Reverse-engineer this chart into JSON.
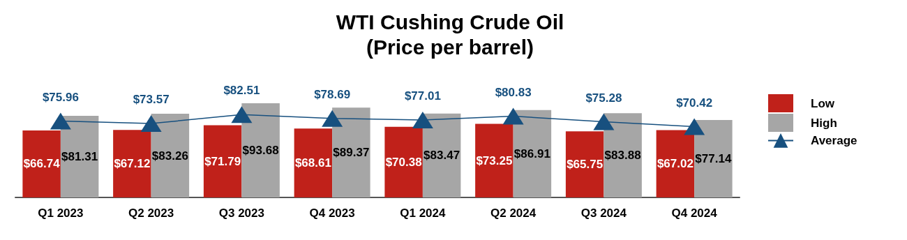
{
  "chart_data": {
    "type": "bar",
    "title": "WTI Cushing Crude Oil\n(Price per barrel)",
    "categories": [
      "Q1 2023",
      "Q2 2023",
      "Q3 2023",
      "Q4 2023",
      "Q1 2024",
      "Q2 2024",
      "Q3 2024",
      "Q4 2024"
    ],
    "series": [
      {
        "name": "Low",
        "color": "#c0211a",
        "values": [
          66.74,
          67.12,
          71.79,
          68.61,
          70.38,
          73.25,
          65.75,
          67.02
        ],
        "value_labels": [
          "$66.74",
          "$67.12",
          "$71.79",
          "$68.61",
          "$70.38",
          "$73.25",
          "$65.75",
          "$67.02"
        ]
      },
      {
        "name": "High",
        "color": "#a6a6a6",
        "values": [
          81.31,
          83.26,
          93.68,
          89.37,
          83.47,
          86.91,
          83.88,
          77.14
        ],
        "value_labels": [
          "$81.31",
          "$83.26",
          "$93.68",
          "$89.37",
          "$83.47",
          "$86.91",
          "$83.88",
          "$77.14"
        ]
      },
      {
        "name": "Average",
        "type": "line",
        "color": "#17507f",
        "values": [
          75.96,
          73.57,
          82.51,
          78.69,
          77.01,
          80.83,
          75.28,
          70.42
        ],
        "value_labels": [
          "$75.96",
          "$73.57",
          "$82.51",
          "$78.69",
          "$77.01",
          "$80.83",
          "$75.28",
          "$70.42"
        ],
        "marker": "triangle",
        "line_style": "solid"
      }
    ],
    "legend": "right",
    "grid": false
  }
}
